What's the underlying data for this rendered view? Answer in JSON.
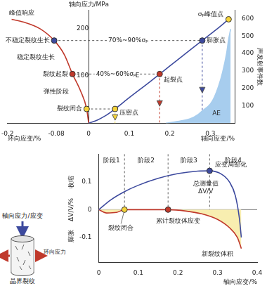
{
  "chart_data": [
    {
      "type": "line",
      "y_label": "轴向应力/MPa",
      "y2_label": "声发射事件数",
      "x_labels": [
        "环向应变/%",
        "轴向应变/%"
      ],
      "xlim": [
        -0.2,
        0.36
      ],
      "xticks": [
        -0.2,
        -0.08,
        0,
        0.1,
        0.2,
        0.3
      ],
      "ylim": [
        0,
        240
      ],
      "yticks": [
        100,
        200
      ],
      "y2lim": [
        0,
        650
      ],
      "y2ticks": [
        100,
        200,
        300,
        400,
        500,
        600
      ],
      "grid": false,
      "series": [
        {
          "color": "#3d4a9e",
          "x": [
            0,
            0.02,
            0.04,
            0.065,
            0.1,
            0.15,
            0.2,
            0.25,
            0.28,
            0.31,
            0.33,
            0.345
          ],
          "values": [
            0,
            6,
            15,
            30,
            54,
            87,
            121,
            155,
            175,
            195,
            209,
            220
          ]
        },
        {
          "color": "#c0392b",
          "x": [
            0,
            -0.005,
            -0.02,
            -0.04,
            -0.06,
            -0.085,
            -0.12,
            -0.16,
            -0.19
          ],
          "values": [
            0,
            30,
            68,
            104,
            145,
            175,
            200,
            214,
            220
          ]
        },
        {
          "color": "#a7cdee",
          "type": "area",
          "axis": "y2",
          "x": [
            0.19,
            0.22,
            0.25,
            0.27,
            0.28,
            0.3,
            0.31,
            0.32,
            0.33,
            0.34,
            0.345,
            0.35
          ],
          "values": [
            0,
            10,
            25,
            50,
            70,
            110,
            150,
            210,
            290,
            400,
            480,
            540
          ]
        }
      ],
      "markers": [
        {
          "label": "压密点",
          "x": 0.065,
          "y": 30,
          "color": "#f5d33a"
        },
        {
          "label": "起裂点",
          "x": 0.175,
          "y": 104,
          "color": "#c0392b"
        },
        {
          "label": "膨胀点",
          "x": 0.28,
          "y": 175,
          "color": "#3d4a9e"
        },
        {
          "label": "σₚ峰值点",
          "x": 0.345,
          "y": 220,
          "color": "#f5d33a"
        },
        {
          "label": "裂纹闭合",
          "x": -0.005,
          "y": 30,
          "color": "#f5d33a"
        },
        {
          "label": "裂纹起裂",
          "x": -0.04,
          "y": 104,
          "color": "#c0392b"
        },
        {
          "label": "不稳定裂纹生长",
          "x": -0.085,
          "y": 175,
          "color": "#3d4a9e"
        }
      ],
      "guides": [
        {
          "y": 175,
          "x": [
            -0.085,
            0.28
          ],
          "label": "70%~90%σₚ"
        },
        {
          "y": 104,
          "x": [
            -0.04,
            0.175
          ],
          "label": "40%~60%σₚ"
        },
        {
          "y": 30,
          "x": [
            -0.005,
            0.065
          ]
        }
      ],
      "annotations": [
        {
          "text": "峰值响应",
          "x": -0.165,
          "y": 233
        },
        {
          "text": "稳定裂纹生长",
          "x": -0.13,
          "y": 140
        },
        {
          "text": "弹性阶段",
          "x": -0.08,
          "y": 67
        },
        {
          "text": "E",
          "x": 0.12,
          "y": 100
        },
        {
          "text": "AE",
          "x": 0.315,
          "y": 20
        }
      ]
    },
    {
      "type": "line",
      "y_label": "ΔV/V/%",
      "side_labels": [
        "收缩",
        "膨胀"
      ],
      "x_label": "轴向应变/%",
      "xlim": [
        0,
        0.4
      ],
      "xticks": [
        0,
        0.1,
        0.2,
        0.3,
        0.4
      ],
      "ylim": [
        -0.19,
        0.2
      ],
      "yticks": [
        -0.1,
        0,
        0.1
      ],
      "grid": false,
      "series": [
        {
          "color": "#3d4a9e",
          "x": [
            0,
            0.03,
            0.065,
            0.1,
            0.15,
            0.2,
            0.25,
            0.28,
            0.31,
            0.33,
            0.345,
            0.355,
            0.36
          ],
          "values": [
            0,
            0.035,
            0.065,
            0.088,
            0.113,
            0.13,
            0.139,
            0.14,
            0.128,
            0.1,
            0.05,
            -0.03,
            -0.1
          ]
        },
        {
          "color": "#c0392b",
          "type": "area",
          "x": [
            0,
            0.02,
            0.045,
            0.065,
            0.175,
            0.22,
            0.26,
            0.3,
            0.33,
            0.35,
            0.36
          ],
          "values": [
            0,
            -0.012,
            -0.01,
            0,
            0,
            -0.005,
            -0.015,
            -0.035,
            -0.065,
            -0.1,
            -0.14
          ]
        }
      ],
      "markers": [
        {
          "label": "裂纹闭合",
          "x": 0.065,
          "y": 0,
          "color": "#f5d33a"
        },
        {
          "x": 0.175,
          "y": 0,
          "color": "#c0392b"
        },
        {
          "label": "应变局部化",
          "x": 0.28,
          "y": 0.14,
          "color": "#3d4a9e"
        }
      ],
      "stages": [
        "阶段1",
        "阶段2",
        "阶段3",
        "阶段4"
      ],
      "stage_bounds": [
        0.065,
        0.175,
        0.28
      ],
      "annotations": [
        {
          "text": "总测量值 ΔV/V",
          "x": 0.27,
          "y": 0.08
        },
        {
          "text": "累计裂纹体应变",
          "x": 0.2,
          "y": -0.04
        },
        {
          "text": "新裂纹体积",
          "x": 0.3,
          "y": -0.16
        }
      ]
    }
  ],
  "diagram": {
    "axial": "轴向应力/应变",
    "lateral": "环向应力",
    "cracks": "晶界裂纹"
  }
}
